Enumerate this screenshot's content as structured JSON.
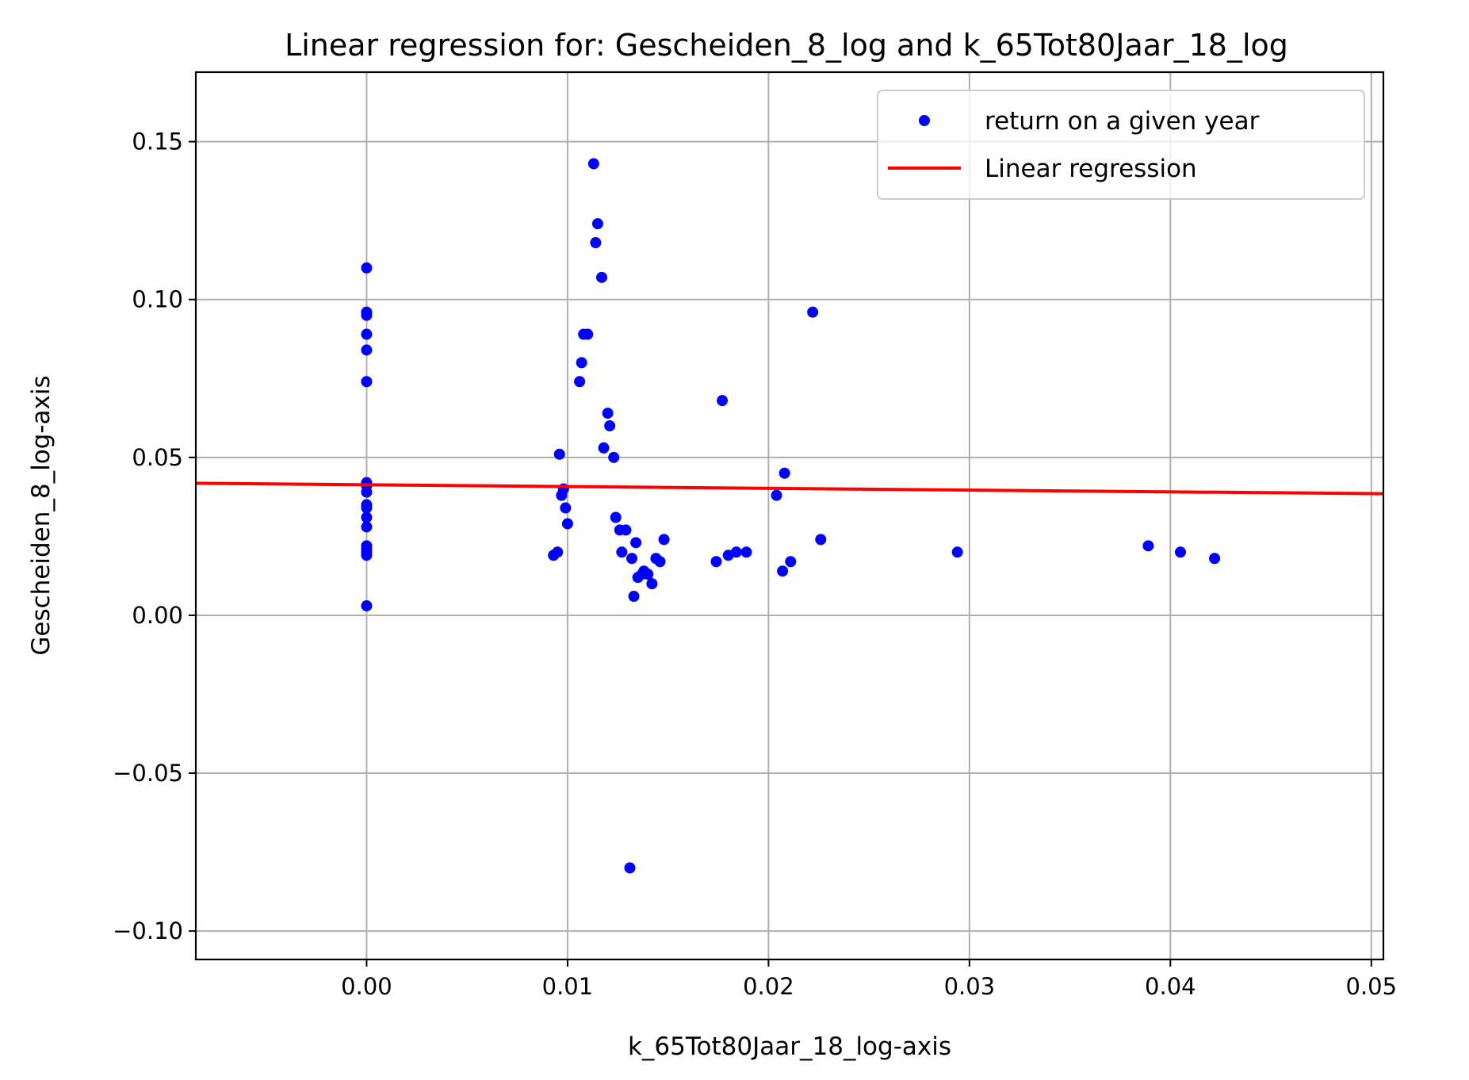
{
  "chart_data": {
    "type": "scatter",
    "title": "Linear regression for: Gescheiden_8_log and k_65Tot80Jaar_18_log",
    "xlabel": "k_65Tot80Jaar_18_log-axis",
    "ylabel": "Gescheiden_8_log-axis",
    "xlim": [
      -0.0085,
      0.0506
    ],
    "ylim": [
      -0.109,
      0.172
    ],
    "x_ticks": [
      0.0,
      0.01,
      0.02,
      0.03,
      0.04,
      0.05
    ],
    "x_tick_labels": [
      "0.00",
      "0.01",
      "0.02",
      "0.03",
      "0.04",
      "0.05"
    ],
    "y_ticks": [
      -0.1,
      -0.05,
      0.0,
      0.05,
      0.1,
      0.15
    ],
    "y_tick_labels": [
      "−0.10",
      "−0.05",
      "0.00",
      "0.05",
      "0.10",
      "0.15"
    ],
    "grid": true,
    "legend_position": "top-right",
    "series": [
      {
        "name": "return on a given year",
        "kind": "scatter",
        "color": "#0000ff",
        "points": [
          [
            0.0,
            0.11
          ],
          [
            0.0,
            0.096
          ],
          [
            0.0,
            0.095
          ],
          [
            0.0,
            0.089
          ],
          [
            0.0,
            0.084
          ],
          [
            0.0,
            0.074
          ],
          [
            0.0,
            0.042
          ],
          [
            0.0,
            0.041
          ],
          [
            0.0,
            0.039
          ],
          [
            0.0,
            0.035
          ],
          [
            0.0,
            0.034
          ],
          [
            0.0,
            0.031
          ],
          [
            0.0,
            0.028
          ],
          [
            0.0,
            0.022
          ],
          [
            0.0,
            0.021
          ],
          [
            0.0,
            0.02
          ],
          [
            0.0,
            0.019
          ],
          [
            0.0,
            0.003
          ],
          [
            0.0093,
            0.019
          ],
          [
            0.0095,
            0.02
          ],
          [
            0.0096,
            0.051
          ],
          [
            0.0097,
            0.038
          ],
          [
            0.0098,
            0.04
          ],
          [
            0.0099,
            0.034
          ],
          [
            0.01,
            0.029
          ],
          [
            0.0106,
            0.074
          ],
          [
            0.0107,
            0.08
          ],
          [
            0.0108,
            0.089
          ],
          [
            0.011,
            0.089
          ],
          [
            0.0113,
            0.143
          ],
          [
            0.0114,
            0.118
          ],
          [
            0.0115,
            0.124
          ],
          [
            0.0117,
            0.107
          ],
          [
            0.0118,
            0.053
          ],
          [
            0.012,
            0.064
          ],
          [
            0.0121,
            0.06
          ],
          [
            0.0123,
            0.05
          ],
          [
            0.0124,
            0.031
          ],
          [
            0.0126,
            0.027
          ],
          [
            0.0127,
            0.02
          ],
          [
            0.0129,
            0.027
          ],
          [
            0.0131,
            -0.08
          ],
          [
            0.0132,
            0.018
          ],
          [
            0.0133,
            0.006
          ],
          [
            0.0134,
            0.023
          ],
          [
            0.0135,
            0.012
          ],
          [
            0.0137,
            0.013
          ],
          [
            0.0138,
            0.014
          ],
          [
            0.014,
            0.013
          ],
          [
            0.0142,
            0.01
          ],
          [
            0.0144,
            0.018
          ],
          [
            0.0146,
            0.017
          ],
          [
            0.0148,
            0.024
          ],
          [
            0.0174,
            0.017
          ],
          [
            0.0177,
            0.068
          ],
          [
            0.018,
            0.019
          ],
          [
            0.0184,
            0.02
          ],
          [
            0.0189,
            0.02
          ],
          [
            0.0204,
            0.038
          ],
          [
            0.0207,
            0.014
          ],
          [
            0.0208,
            0.045
          ],
          [
            0.0211,
            0.017
          ],
          [
            0.0222,
            0.096
          ],
          [
            0.0226,
            0.024
          ],
          [
            0.0294,
            0.02
          ],
          [
            0.0389,
            0.022
          ],
          [
            0.0405,
            0.02
          ],
          [
            0.0422,
            0.018
          ]
        ]
      },
      {
        "name": "Linear regression",
        "kind": "line",
        "color": "#ff0000",
        "x": [
          -0.0085,
          0.0506
        ],
        "y": [
          0.0418,
          0.0385
        ]
      }
    ]
  }
}
